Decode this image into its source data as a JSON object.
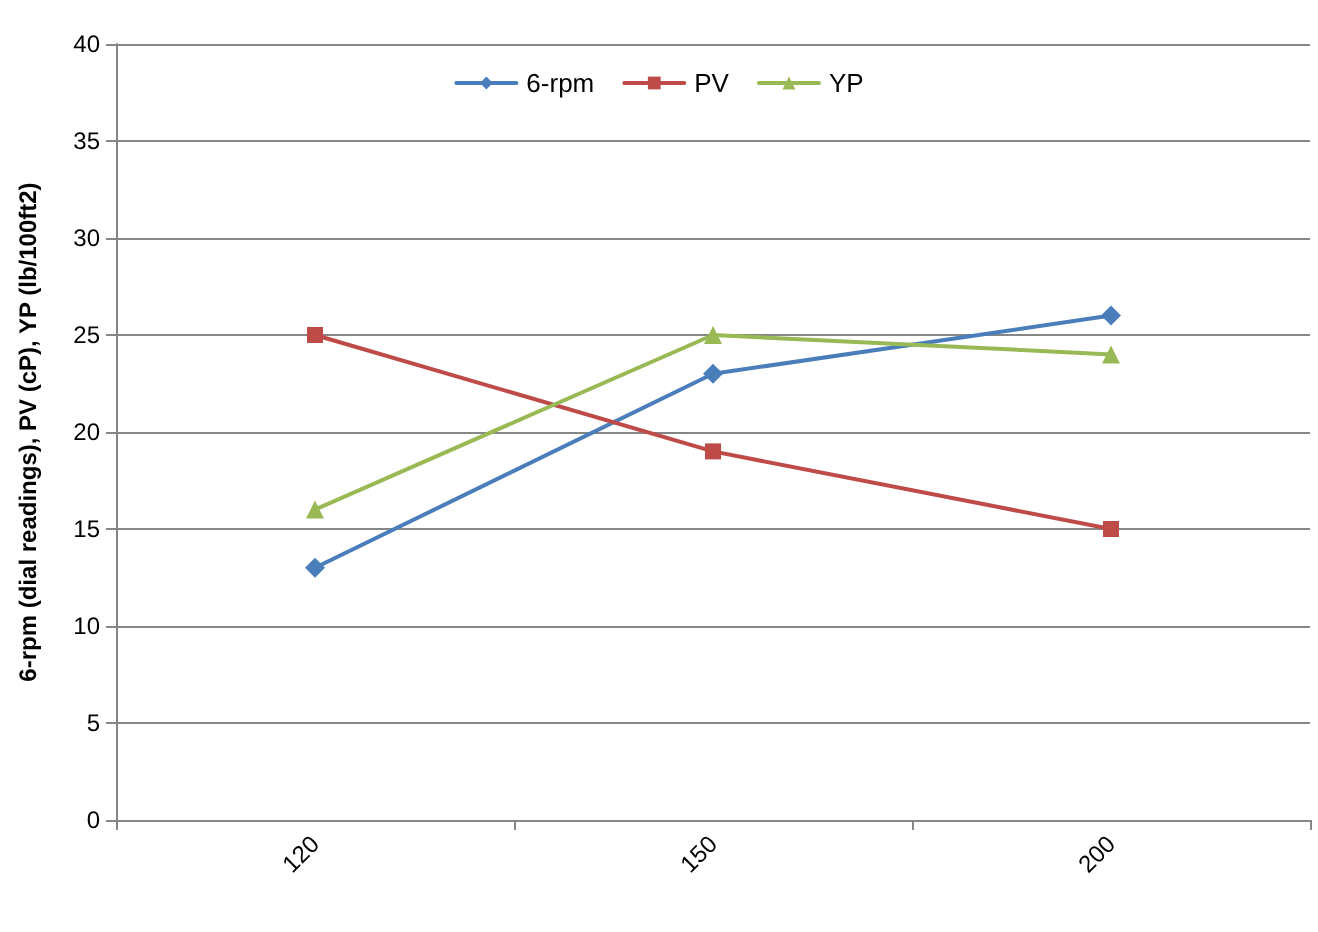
{
  "chart_data": {
    "type": "line",
    "ylabel": "6-rpm (dial readings), PV (cP), YP (lb/100ft2)",
    "categories": [
      "120",
      "150",
      "200"
    ],
    "series": [
      {
        "name": "6-rpm",
        "color": "#4a7ebb",
        "marker": "diamond",
        "values": [
          13,
          23,
          26
        ]
      },
      {
        "name": "PV",
        "color": "#be4b48",
        "marker": "square",
        "values": [
          25,
          19,
          15
        ]
      },
      {
        "name": "YP",
        "color": "#98b954",
        "marker": "triangle",
        "values": [
          16,
          25,
          24
        ]
      }
    ],
    "ylim": [
      0,
      40
    ],
    "yticks": [
      0,
      5,
      10,
      15,
      20,
      25,
      30,
      35,
      40
    ],
    "grid": "y",
    "legend": "top",
    "line_style": "solid"
  }
}
